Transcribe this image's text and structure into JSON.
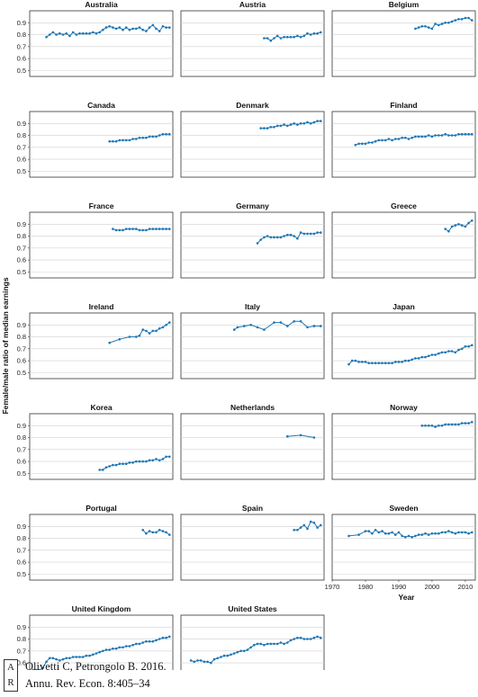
{
  "chart_data": {
    "type": "line",
    "ylabel": "Female/male ratio of median earnings",
    "xlabel": "Year",
    "xlim": [
      1970,
      2013
    ],
    "ylim": [
      0.45,
      1.0
    ],
    "xticks": [
      1970,
      1980,
      1990,
      2000,
      2010
    ],
    "yticks": [
      0.5,
      0.6,
      0.7,
      0.8,
      0.9
    ],
    "grid": true,
    "series_color": "#1f77b4",
    "panels": [
      {
        "name": "Australia",
        "x": [
          1975,
          1976,
          1977,
          1978,
          1979,
          1980,
          1981,
          1982,
          1983,
          1984,
          1985,
          1986,
          1987,
          1988,
          1989,
          1990,
          1991,
          1992,
          1993,
          1994,
          1995,
          1996,
          1997,
          1998,
          1999,
          2000,
          2001,
          2002,
          2003,
          2004,
          2005,
          2006,
          2007,
          2008,
          2009,
          2010,
          2011,
          2012
        ],
        "y": [
          0.78,
          0.8,
          0.82,
          0.8,
          0.81,
          0.8,
          0.81,
          0.79,
          0.82,
          0.8,
          0.81,
          0.81,
          0.81,
          0.81,
          0.82,
          0.81,
          0.82,
          0.84,
          0.86,
          0.87,
          0.86,
          0.85,
          0.86,
          0.84,
          0.86,
          0.84,
          0.85,
          0.85,
          0.86,
          0.84,
          0.83,
          0.86,
          0.88,
          0.85,
          0.83,
          0.87,
          0.86,
          0.86
        ]
      },
      {
        "name": "Austria",
        "x": [
          1995,
          1996,
          1997,
          1998,
          1999,
          2000,
          2001,
          2002,
          2003,
          2004,
          2005,
          2006,
          2007,
          2008,
          2009,
          2010,
          2011,
          2012
        ],
        "y": [
          0.77,
          0.77,
          0.75,
          0.77,
          0.79,
          0.77,
          0.78,
          0.78,
          0.78,
          0.78,
          0.79,
          0.78,
          0.79,
          0.81,
          0.8,
          0.81,
          0.81,
          0.82
        ]
      },
      {
        "name": "Belgium",
        "x": [
          1995,
          1996,
          1997,
          1998,
          1999,
          2000,
          2001,
          2002,
          2003,
          2004,
          2005,
          2006,
          2007,
          2008,
          2009,
          2010,
          2011,
          2012
        ],
        "y": [
          0.85,
          0.86,
          0.87,
          0.87,
          0.86,
          0.85,
          0.89,
          0.88,
          0.89,
          0.9,
          0.9,
          0.91,
          0.92,
          0.93,
          0.93,
          0.94,
          0.94,
          0.92
        ]
      },
      {
        "name": "Canada",
        "x": [
          1994,
          1995,
          1996,
          1997,
          1998,
          1999,
          2000,
          2001,
          2002,
          2003,
          2004,
          2005,
          2006,
          2007,
          2008,
          2009,
          2010,
          2011,
          2012
        ],
        "y": [
          0.75,
          0.75,
          0.75,
          0.76,
          0.76,
          0.76,
          0.76,
          0.77,
          0.77,
          0.78,
          0.78,
          0.78,
          0.79,
          0.79,
          0.79,
          0.8,
          0.81,
          0.81,
          0.81
        ]
      },
      {
        "name": "Denmark",
        "x": [
          1994,
          1995,
          1996,
          1997,
          1998,
          1999,
          2000,
          2001,
          2002,
          2003,
          2004,
          2005,
          2006,
          2007,
          2008,
          2009,
          2010,
          2011,
          2012
        ],
        "y": [
          0.86,
          0.86,
          0.86,
          0.87,
          0.87,
          0.88,
          0.88,
          0.89,
          0.88,
          0.89,
          0.9,
          0.89,
          0.9,
          0.9,
          0.91,
          0.9,
          0.91,
          0.92,
          0.92
        ]
      },
      {
        "name": "Finland",
        "x": [
          1977,
          1978,
          1979,
          1980,
          1981,
          1982,
          1983,
          1984,
          1985,
          1986,
          1987,
          1988,
          1989,
          1990,
          1991,
          1992,
          1993,
          1994,
          1995,
          1996,
          1997,
          1998,
          1999,
          2000,
          2001,
          2002,
          2003,
          2004,
          2005,
          2006,
          2007,
          2008,
          2009,
          2010,
          2011,
          2012
        ],
        "y": [
          0.72,
          0.73,
          0.73,
          0.73,
          0.74,
          0.74,
          0.75,
          0.76,
          0.76,
          0.76,
          0.77,
          0.76,
          0.77,
          0.77,
          0.78,
          0.78,
          0.77,
          0.78,
          0.79,
          0.79,
          0.79,
          0.79,
          0.8,
          0.79,
          0.8,
          0.8,
          0.8,
          0.81,
          0.8,
          0.8,
          0.8,
          0.81,
          0.81,
          0.81,
          0.81,
          0.81
        ]
      },
      {
        "name": "France",
        "x": [
          1995,
          1996,
          1997,
          1998,
          1999,
          2000,
          2001,
          2002,
          2003,
          2004,
          2005,
          2006,
          2007,
          2008,
          2009,
          2010,
          2011,
          2012
        ],
        "y": [
          0.86,
          0.85,
          0.85,
          0.85,
          0.86,
          0.86,
          0.86,
          0.86,
          0.85,
          0.85,
          0.85,
          0.86,
          0.86,
          0.86,
          0.86,
          0.86,
          0.86,
          0.86
        ]
      },
      {
        "name": "Germany",
        "x": [
          1993,
          1994,
          1995,
          1996,
          1997,
          1998,
          1999,
          2000,
          2001,
          2002,
          2003,
          2004,
          2005,
          2006,
          2007,
          2008,
          2009,
          2010,
          2011,
          2012
        ],
        "y": [
          0.74,
          0.77,
          0.79,
          0.8,
          0.79,
          0.79,
          0.79,
          0.79,
          0.8,
          0.81,
          0.81,
          0.8,
          0.78,
          0.83,
          0.82,
          0.82,
          0.82,
          0.82,
          0.83,
          0.83
        ]
      },
      {
        "name": "Greece",
        "x": [
          2004,
          2005,
          2006,
          2007,
          2008,
          2009,
          2010,
          2011,
          2012
        ],
        "y": [
          0.86,
          0.84,
          0.88,
          0.89,
          0.9,
          0.89,
          0.88,
          0.91,
          0.93
        ]
      },
      {
        "name": "Ireland",
        "x": [
          1994,
          1997,
          2000,
          2002,
          2003,
          2004,
          2005,
          2006,
          2007,
          2008,
          2009,
          2010,
          2011,
          2012
        ],
        "y": [
          0.75,
          0.78,
          0.8,
          0.8,
          0.81,
          0.86,
          0.85,
          0.83,
          0.85,
          0.85,
          0.87,
          0.88,
          0.9,
          0.92
        ]
      },
      {
        "name": "Italy",
        "x": [
          1986,
          1987,
          1989,
          1991,
          1993,
          1995,
          1998,
          2000,
          2002,
          2004,
          2006,
          2008,
          2010,
          2012
        ],
        "y": [
          0.86,
          0.88,
          0.89,
          0.9,
          0.88,
          0.86,
          0.92,
          0.92,
          0.89,
          0.93,
          0.93,
          0.88,
          0.89,
          0.89
        ]
      },
      {
        "name": "Japan",
        "x": [
          1975,
          1976,
          1977,
          1978,
          1979,
          1980,
          1981,
          1982,
          1983,
          1984,
          1985,
          1986,
          1987,
          1988,
          1989,
          1990,
          1991,
          1992,
          1993,
          1994,
          1995,
          1996,
          1997,
          1998,
          1999,
          2000,
          2001,
          2002,
          2003,
          2004,
          2005,
          2006,
          2007,
          2008,
          2009,
          2010,
          2011,
          2012
        ],
        "y": [
          0.57,
          0.6,
          0.6,
          0.59,
          0.59,
          0.59,
          0.58,
          0.58,
          0.58,
          0.58,
          0.58,
          0.58,
          0.58,
          0.58,
          0.59,
          0.59,
          0.59,
          0.6,
          0.6,
          0.61,
          0.62,
          0.62,
          0.63,
          0.63,
          0.64,
          0.65,
          0.65,
          0.66,
          0.67,
          0.67,
          0.68,
          0.68,
          0.67,
          0.69,
          0.7,
          0.72,
          0.72,
          0.73
        ]
      },
      {
        "name": "Korea",
        "x": [
          1991,
          1992,
          1993,
          1994,
          1995,
          1996,
          1997,
          1998,
          1999,
          2000,
          2001,
          2002,
          2003,
          2004,
          2005,
          2006,
          2007,
          2008,
          2009,
          2010,
          2011,
          2012
        ],
        "y": [
          0.53,
          0.53,
          0.55,
          0.56,
          0.57,
          0.57,
          0.58,
          0.58,
          0.58,
          0.59,
          0.59,
          0.6,
          0.6,
          0.6,
          0.6,
          0.61,
          0.61,
          0.62,
          0.61,
          0.62,
          0.64,
          0.64
        ]
      },
      {
        "name": "Netherlands",
        "x": [
          2002,
          2006,
          2010
        ],
        "y": [
          0.81,
          0.82,
          0.8
        ]
      },
      {
        "name": "Norway",
        "x": [
          1997,
          1998,
          1999,
          2000,
          2001,
          2002,
          2003,
          2004,
          2005,
          2006,
          2007,
          2008,
          2009,
          2010,
          2011,
          2012
        ],
        "y": [
          0.9,
          0.9,
          0.9,
          0.9,
          0.89,
          0.9,
          0.9,
          0.91,
          0.91,
          0.91,
          0.91,
          0.91,
          0.92,
          0.92,
          0.92,
          0.93
        ]
      },
      {
        "name": "Portugal",
        "x": [
          2004,
          2005,
          2006,
          2007,
          2008,
          2009,
          2010,
          2011,
          2012
        ],
        "y": [
          0.87,
          0.84,
          0.86,
          0.85,
          0.85,
          0.87,
          0.86,
          0.85,
          0.83
        ]
      },
      {
        "name": "Spain",
        "x": [
          2004,
          2005,
          2006,
          2007,
          2008,
          2009,
          2010,
          2011,
          2012
        ],
        "y": [
          0.87,
          0.87,
          0.89,
          0.91,
          0.88,
          0.94,
          0.93,
          0.89,
          0.91
        ]
      },
      {
        "name": "Sweden",
        "x": [
          1975,
          1978,
          1980,
          1981,
          1982,
          1983,
          1984,
          1985,
          1986,
          1987,
          1988,
          1989,
          1990,
          1991,
          1992,
          1993,
          1994,
          1995,
          1996,
          1997,
          1998,
          1999,
          2000,
          2001,
          2002,
          2003,
          2004,
          2005,
          2006,
          2007,
          2008,
          2009,
          2010,
          2011,
          2012
        ],
        "y": [
          0.82,
          0.83,
          0.86,
          0.86,
          0.84,
          0.87,
          0.85,
          0.86,
          0.84,
          0.84,
          0.85,
          0.83,
          0.85,
          0.82,
          0.81,
          0.82,
          0.81,
          0.82,
          0.83,
          0.83,
          0.84,
          0.83,
          0.84,
          0.84,
          0.84,
          0.85,
          0.85,
          0.86,
          0.85,
          0.84,
          0.85,
          0.85,
          0.85,
          0.84,
          0.85
        ]
      },
      {
        "name": "United Kingdom",
        "x": [
          1970,
          1971,
          1972,
          1973,
          1974,
          1975,
          1976,
          1977,
          1978,
          1979,
          1980,
          1981,
          1982,
          1983,
          1984,
          1985,
          1986,
          1987,
          1988,
          1989,
          1990,
          1991,
          1992,
          1993,
          1994,
          1995,
          1996,
          1997,
          1998,
          1999,
          2000,
          2001,
          2002,
          2003,
          2004,
          2005,
          2006,
          2007,
          2008,
          2009,
          2010,
          2011,
          2012
        ],
        "y": [
          0.52,
          0.54,
          0.54,
          0.54,
          0.56,
          0.61,
          0.64,
          0.64,
          0.63,
          0.62,
          0.63,
          0.64,
          0.64,
          0.65,
          0.65,
          0.65,
          0.65,
          0.66,
          0.66,
          0.67,
          0.68,
          0.69,
          0.7,
          0.71,
          0.71,
          0.72,
          0.72,
          0.73,
          0.73,
          0.74,
          0.74,
          0.75,
          0.76,
          0.76,
          0.77,
          0.78,
          0.78,
          0.78,
          0.79,
          0.8,
          0.81,
          0.81,
          0.82
        ]
      },
      {
        "name": "United States",
        "x": [
          1973,
          1974,
          1975,
          1976,
          1977,
          1978,
          1979,
          1980,
          1981,
          1982,
          1983,
          1984,
          1985,
          1986,
          1987,
          1988,
          1989,
          1990,
          1991,
          1992,
          1993,
          1994,
          1995,
          1996,
          1997,
          1998,
          1999,
          2000,
          2001,
          2002,
          2003,
          2004,
          2005,
          2006,
          2007,
          2008,
          2009,
          2010,
          2011,
          2012
        ],
        "y": [
          0.62,
          0.61,
          0.62,
          0.62,
          0.61,
          0.61,
          0.6,
          0.63,
          0.64,
          0.65,
          0.66,
          0.66,
          0.67,
          0.68,
          0.69,
          0.7,
          0.7,
          0.71,
          0.73,
          0.75,
          0.76,
          0.76,
          0.75,
          0.76,
          0.76,
          0.76,
          0.76,
          0.77,
          0.76,
          0.77,
          0.79,
          0.8,
          0.81,
          0.81,
          0.8,
          0.8,
          0.8,
          0.81,
          0.82,
          0.81
        ]
      }
    ]
  },
  "citation": {
    "logo_top": "A",
    "logo_bottom": "R",
    "line1": "Olivetti C, Petrongolo B. 2016.",
    "line2": "Annu. Rev. Econ. 8:405–34"
  }
}
